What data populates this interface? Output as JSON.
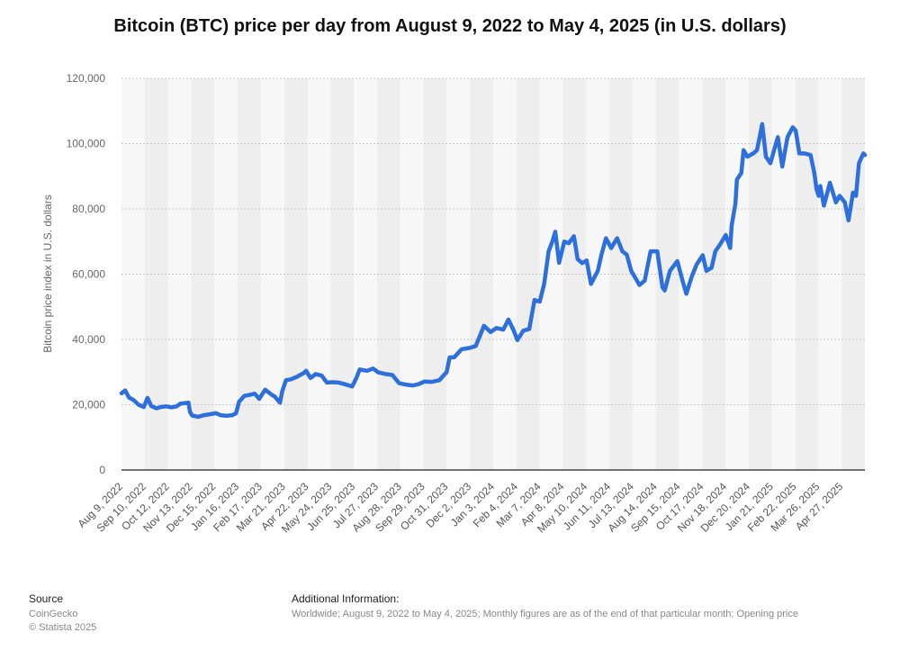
{
  "chart_data": {
    "type": "line",
    "title": "Bitcoin (BTC) price per day from August 9, 2022 to May 4, 2025 (in U.S. dollars)",
    "xlabel": "",
    "ylabel": "Bitcoin price index in U.S. dollars",
    "ylim": [
      0,
      120000
    ],
    "yticks": [
      0,
      20000,
      40000,
      60000,
      80000,
      100000,
      120000
    ],
    "ytick_labels": [
      "0",
      "20,000",
      "40,000",
      "60,000",
      "80,000",
      "100,000",
      "120,000"
    ],
    "xlim": [
      "2022-08-09",
      "2025-05-04"
    ],
    "xtick_labels": [
      "Aug 9, 2022",
      "Sep 10, 2022",
      "Oct 12, 2022",
      "Nov 13, 2022",
      "Dec 15, 2022",
      "Jan 16, 2023",
      "Feb 17, 2023",
      "Mar 21, 2023",
      "Apr 22, 2023",
      "May 24, 2023",
      "Jun 25, 2023",
      "Jul 27, 2023",
      "Aug 28, 2023",
      "Sep 29, 2023",
      "Oct 31, 2023",
      "Dec 2, 2023",
      "Jan 3, 2024",
      "Feb 4, 2024",
      "Mar 7, 2024",
      "Apr 8, 2024",
      "May 10, 2024",
      "Jun 11, 2024",
      "Jul 13, 2024",
      "Aug 14, 2024",
      "Sep 15, 2024",
      "Oct 17, 2024",
      "Nov 18, 2024",
      "Dec 20, 2024",
      "Jan 21, 2025",
      "Feb 22, 2025",
      "Mar 26, 2025",
      "Apr 27, 2025"
    ],
    "grid": true,
    "line_color": "#2c6fdd",
    "series": [
      {
        "x": [
          "2022-08-09",
          "2022-08-14",
          "2022-08-19",
          "2022-08-25",
          "2022-09-01",
          "2022-09-08",
          "2022-09-13",
          "2022-09-18",
          "2022-09-25",
          "2022-10-01",
          "2022-10-08",
          "2022-10-15",
          "2022-10-22",
          "2022-10-27",
          "2022-11-02",
          "2022-11-07",
          "2022-11-09",
          "2022-11-12",
          "2022-11-20",
          "2022-11-28",
          "2022-12-06",
          "2022-12-14",
          "2022-12-20",
          "2022-12-28",
          "2023-01-05",
          "2023-01-10",
          "2023-01-14",
          "2023-01-21",
          "2023-01-28",
          "2023-02-04",
          "2023-02-10",
          "2023-02-18",
          "2023-02-26",
          "2023-03-03",
          "2023-03-10",
          "2023-03-13",
          "2023-03-18",
          "2023-03-25",
          "2023-04-01",
          "2023-04-11",
          "2023-04-14",
          "2023-04-20",
          "2023-04-27",
          "2023-05-05",
          "2023-05-12",
          "2023-05-20",
          "2023-05-28",
          "2023-06-05",
          "2023-06-15",
          "2023-06-21",
          "2023-06-25",
          "2023-07-05",
          "2023-07-13",
          "2023-07-20",
          "2023-07-30",
          "2023-08-08",
          "2023-08-17",
          "2023-08-28",
          "2023-09-05",
          "2023-09-12",
          "2023-09-20",
          "2023-09-30",
          "2023-10-10",
          "2023-10-20",
          "2023-10-24",
          "2023-10-30",
          "2023-11-09",
          "2023-11-20",
          "2023-11-28",
          "2023-12-05",
          "2023-12-09",
          "2023-12-18",
          "2023-12-26",
          "2024-01-04",
          "2024-01-11",
          "2024-01-18",
          "2024-01-23",
          "2024-01-31",
          "2024-02-08",
          "2024-02-15",
          "2024-02-22",
          "2024-02-28",
          "2024-03-05",
          "2024-03-10",
          "2024-03-14",
          "2024-03-19",
          "2024-03-26",
          "2024-04-01",
          "2024-04-08",
          "2024-04-13",
          "2024-04-19",
          "2024-04-25",
          "2024-05-01",
          "2024-05-10",
          "2024-05-15",
          "2024-05-21",
          "2024-05-28",
          "2024-06-05",
          "2024-06-12",
          "2024-06-18",
          "2024-06-24",
          "2024-07-05",
          "2024-07-12",
          "2024-07-20",
          "2024-07-29",
          "2024-08-05",
          "2024-08-08",
          "2024-08-15",
          "2024-08-25",
          "2024-09-01",
          "2024-09-06",
          "2024-09-13",
          "2024-09-20",
          "2024-09-28",
          "2024-10-03",
          "2024-10-10",
          "2024-10-15",
          "2024-10-21",
          "2024-10-29",
          "2024-11-04",
          "2024-11-06",
          "2024-11-11",
          "2024-11-13",
          "2024-11-19",
          "2024-11-22",
          "2024-11-27",
          "2024-12-05",
          "2024-12-10",
          "2024-12-17",
          "2024-12-22",
          "2024-12-28",
          "2025-01-02",
          "2025-01-07",
          "2025-01-13",
          "2025-01-20",
          "2025-01-27",
          "2025-01-31",
          "2025-02-05",
          "2025-02-12",
          "2025-02-20",
          "2025-02-25",
          "2025-02-28",
          "2025-03-03",
          "2025-03-05",
          "2025-03-10",
          "2025-03-18",
          "2025-03-26",
          "2025-03-31",
          "2025-04-07",
          "2025-04-12",
          "2025-04-18",
          "2025-04-22",
          "2025-04-26",
          "2025-05-02",
          "2025-05-04"
        ],
        "values": [
          23500,
          24400,
          22200,
          21500,
          20000,
          19300,
          22100,
          19600,
          18900,
          19300,
          19500,
          19200,
          19500,
          20300,
          20500,
          20600,
          17800,
          16700,
          16300,
          16800,
          17100,
          17400,
          16800,
          16600,
          16800,
          17400,
          20900,
          22700,
          23000,
          23400,
          21800,
          24600,
          23200,
          22500,
          20600,
          24100,
          27500,
          27800,
          28500,
          29700,
          30400,
          28200,
          29400,
          28900,
          26800,
          26900,
          26800,
          26300,
          25600,
          28400,
          30800,
          30400,
          31100,
          29900,
          29400,
          29100,
          26600,
          26100,
          25900,
          26300,
          27100,
          27000,
          27500,
          30000,
          34500,
          34500,
          37000,
          37400,
          38000,
          41900,
          44200,
          42300,
          43500,
          43000,
          46100,
          42800,
          39800,
          42700,
          43200,
          52100,
          51600,
          57000,
          67000,
          70000,
          73000,
          63500,
          70000,
          69500,
          71600,
          64600,
          63400,
          64200,
          57000,
          61000,
          66000,
          71000,
          68000,
          71000,
          67000,
          66000,
          61000,
          56700,
          58000,
          67000,
          67000,
          56000,
          55000,
          61000,
          64000,
          58000,
          54000,
          59000,
          63000,
          65800,
          61000,
          62000,
          67000,
          69000,
          72000,
          68000,
          75000,
          81500,
          89000,
          91000,
          98000,
          96000,
          97000,
          98000,
          106000,
          96000,
          94000,
          98000,
          102000,
          93000,
          102000,
          105000,
          104000,
          97000,
          97000,
          96500,
          91000,
          86000,
          84000,
          87000,
          81000,
          88000,
          82000,
          84000,
          82000,
          76500,
          85000,
          84000,
          94000,
          97000,
          96500
        ]
      }
    ]
  },
  "footer": {
    "source_heading": "Source",
    "source_lines": [
      "CoinGecko",
      "© Statista 2025"
    ],
    "info_heading": "Additional Information:",
    "info_text": "Worldwide; August 9, 2022 to May 4, 2025; Monthly figures are as of the end of that particular month; Opening price"
  }
}
